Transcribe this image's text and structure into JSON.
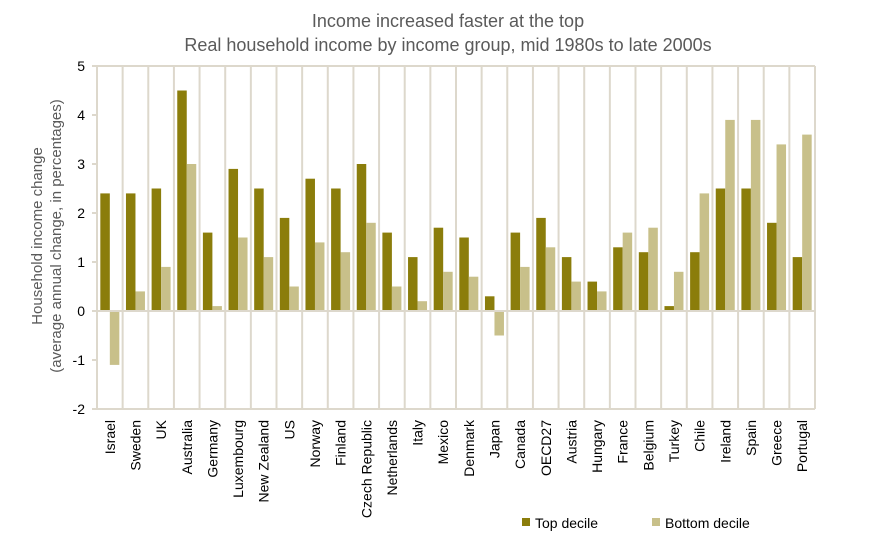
{
  "chart_data": {
    "type": "bar",
    "title": "Income increased faster at the top",
    "subtitle": "Real household income by income group, mid 1980s to late 2000s",
    "ylabel_line1": "Household income change",
    "ylabel_line2": "(average annual change, in percentages)",
    "xlabel": "",
    "ylim": [
      -2,
      5
    ],
    "yticks": [
      "-2",
      "-1",
      "0",
      "1",
      "2",
      "3",
      "4",
      "5"
    ],
    "grid": "vertical",
    "legend_position": "bottom-right",
    "categories": [
      "Israel",
      "Sweden",
      "UK",
      "Australia",
      "Germany",
      "Luxembourg",
      "New Zealand",
      "US",
      "Norway",
      "Finland",
      "Czech Republic",
      "Netherlands",
      "Italy",
      "Mexico",
      "Denmark",
      "Japan",
      "Canada",
      "OECD27",
      "Austria",
      "Hungary",
      "France",
      "Belgium",
      "Turkey",
      "Chile",
      "Ireland",
      "Spain",
      "Greece",
      "Portugal"
    ],
    "series": [
      {
        "name": "Top decile",
        "color": "#8b7d0b",
        "values": [
          2.4,
          2.4,
          2.5,
          4.5,
          1.6,
          2.9,
          2.5,
          1.9,
          2.7,
          2.5,
          3.0,
          1.6,
          1.1,
          1.7,
          1.5,
          0.3,
          1.6,
          1.9,
          1.1,
          0.6,
          1.3,
          1.2,
          0.1,
          1.2,
          2.5,
          2.5,
          1.8,
          1.1
        ]
      },
      {
        "name": "Bottom decile",
        "color": "#c8c08a",
        "values": [
          -1.1,
          0.4,
          0.9,
          3.0,
          0.1,
          1.5,
          1.1,
          0.5,
          1.4,
          1.2,
          1.8,
          0.5,
          0.2,
          0.8,
          0.7,
          -0.5,
          0.9,
          1.3,
          0.6,
          0.4,
          1.6,
          1.7,
          0.8,
          2.4,
          3.9,
          3.9,
          3.4,
          3.6
        ]
      }
    ]
  }
}
